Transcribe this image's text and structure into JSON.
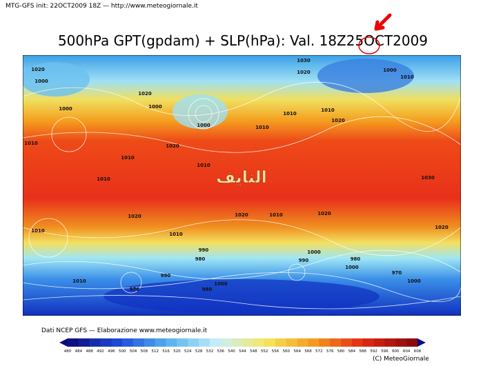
{
  "header": "MTG-GFS init: 22OCT2009 18Z — http://www.meteogiornale.it",
  "title": "500hPa GPT(gpdam) + SLP(hPa): Val. 18Z25OCT2009",
  "watermark": "النايف",
  "footer": "Dati NCEP GFS — Elaborazione www.meteogiornale.it",
  "copyright": "(C) MeteoGiornale",
  "colorbar_labels": [
    "480",
    "484",
    "488",
    "492",
    "496",
    "500",
    "504",
    "508",
    "512",
    "516",
    "520",
    "524",
    "528",
    "532",
    "536",
    "540",
    "544",
    "548",
    "552",
    "556",
    "560",
    "564",
    "568",
    "572",
    "576",
    "580",
    "584",
    "588",
    "592",
    "596",
    "600",
    "604",
    "608"
  ],
  "isobar_labels": [
    "1020",
    "1000",
    "1010",
    "1000",
    "1020",
    "1000",
    "1020",
    "1010",
    "1010",
    "1000",
    "1030",
    "1020",
    "1010",
    "1000",
    "1010",
    "1010",
    "1010",
    "1020",
    "1010",
    "1020",
    "1020",
    "1010",
    "1020",
    "1010",
    "1030",
    "1020",
    "1010",
    "990",
    "980",
    "990",
    "1000",
    "980",
    "990",
    "1000",
    "970",
    "1000",
    "1000",
    "970",
    "980",
    "1010"
  ]
}
